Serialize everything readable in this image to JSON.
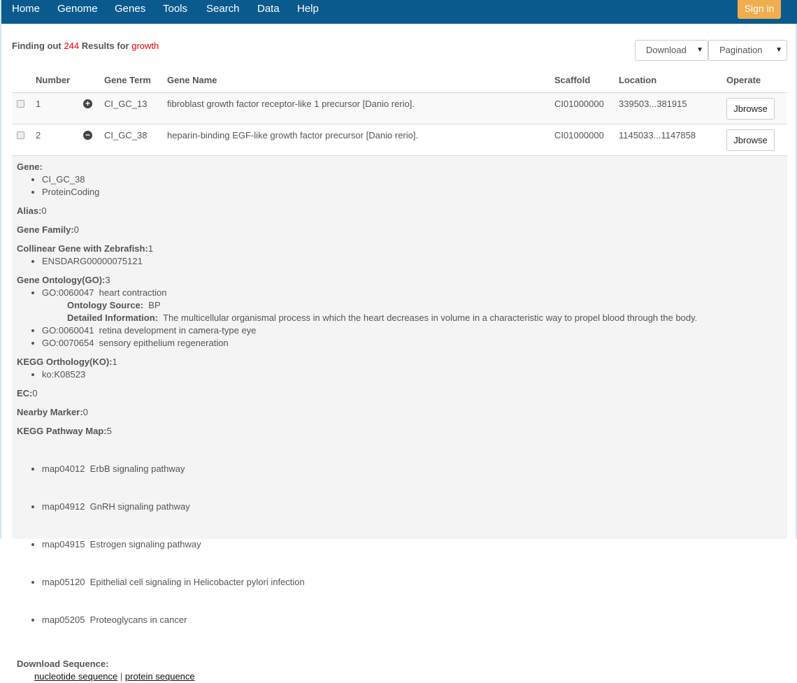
{
  "nav": {
    "items": [
      "Home",
      "Genome",
      "Genes",
      "Tools",
      "Search",
      "Data",
      "Help"
    ],
    "sign_in": "Sign in"
  },
  "summary": {
    "prefix": "Finding out",
    "count": "244",
    "middle": "Results for",
    "query": "growth"
  },
  "toolbar": {
    "download": "Download",
    "pagination": "Pagination"
  },
  "table": {
    "headers": [
      "Number",
      "Gene Term",
      "Gene Name",
      "Scaffold",
      "Location",
      "Operate"
    ],
    "rows": [
      {
        "number": "1",
        "expand_icon": "plus-circle",
        "term": "CI_GC_13",
        "name": "fibroblast growth factor receptor-like 1 precursor [Danio rerio].",
        "scaffold": "CI01000000",
        "location": "339503...381915",
        "operate": "Jbrowse"
      },
      {
        "number": "2",
        "expand_icon": "minus-circle",
        "term": "CI_GC_38",
        "name": "heparin-binding EGF-like growth factor precursor [Danio rerio].",
        "scaffold": "CI01000000",
        "location": "1145033...1147858",
        "operate": "Jbrowse"
      }
    ]
  },
  "detail": {
    "gene": {
      "label": "Gene:",
      "items": [
        "CI_GC_38",
        "ProteinCoding"
      ]
    },
    "alias": {
      "label": "Alias:",
      "value": "0"
    },
    "family": {
      "label": "Gene Family:",
      "value": "0"
    },
    "collinear": {
      "label": "Collinear Gene with Zebrafish:",
      "value": "1",
      "items": [
        "ENSDARG00000075121"
      ]
    },
    "go": {
      "label": "Gene Ontology(GO):",
      "value": "3",
      "items": [
        "GO:0060047  heart contraction",
        "GO:0060041  retina development in camera-type eye",
        "GO:0070654  sensory epithelium regeneration"
      ],
      "source_label": "Ontology Source:",
      "source": "BP",
      "info_label": "Detailed Information:",
      "info": "The multicellular organismal process in which the heart decreases in volume in a characteristic way to propel blood through the body."
    },
    "ko": {
      "label": "KEGG Orthology(KO):",
      "value": "1",
      "items": [
        "ko:K08523"
      ]
    },
    "ec": {
      "label": "EC:",
      "value": "0"
    },
    "marker": {
      "label": "Nearby Marker:",
      "value": "0"
    },
    "pathway": {
      "label": "KEGG Pathway Map:",
      "value": "5",
      "items": [
        "map04012  ErbB signaling pathway",
        "map04912  GnRH signaling pathway",
        "map04915  Estrogen signaling pathway",
        "map05120  Epithelial cell signaling in Helicobacter pylori infection",
        "map05205  Proteoglycans in cancer"
      ]
    },
    "download": {
      "label": "Download Sequence:",
      "nucleotide": "nucleotide sequence",
      "sep": "|",
      "protein": "protein sequence"
    }
  }
}
